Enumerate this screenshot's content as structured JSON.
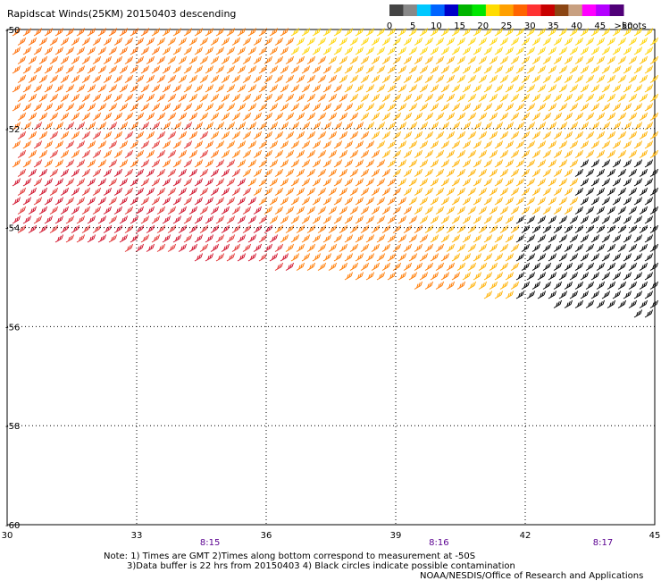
{
  "title": "Rapidscat Winds(25KM) 20150403 descending",
  "legend": {
    "tick_labels": [
      "0",
      "5",
      "10",
      "15",
      "20",
      "25",
      "30",
      "35",
      "40",
      "45",
      ">50"
    ],
    "unit": "knots",
    "colors": [
      "#444444",
      "#888888",
      "#00c8ff",
      "#0064ff",
      "#0000c8",
      "#00b400",
      "#00e600",
      "#ffdc00",
      "#ffa000",
      "#ff6400",
      "#ff3232",
      "#c80000",
      "#8b4513",
      "#c8a080",
      "#ff00ff",
      "#b400ff",
      "#500078"
    ]
  },
  "map": {
    "lon_range": [
      30,
      45
    ],
    "lat_range": [
      -60,
      -50
    ],
    "lon_ticks": [
      "30",
      "33",
      "36",
      "39",
      "42",
      "45"
    ],
    "lat_ticks": [
      "-50",
      "-52",
      "-54",
      "-56",
      "-58",
      "-60"
    ],
    "time_labels": [
      {
        "text": "8:15",
        "lon": 34.7
      },
      {
        "text": "8:16",
        "lon": 40.0
      },
      {
        "text": "8:17",
        "lon": 43.8
      }
    ],
    "swath_edge": "diagonal from west to east, lower at east"
  },
  "notes": [
    "Note: 1) Times are GMT 2)Times along bottom correspond to measurement at -50S",
    "3)Data buffer is 22 hrs from 20150403 4) Black circles indicate possible contamination"
  ],
  "credit": "NOAA/NESDIS/Office of Research and Applications"
}
